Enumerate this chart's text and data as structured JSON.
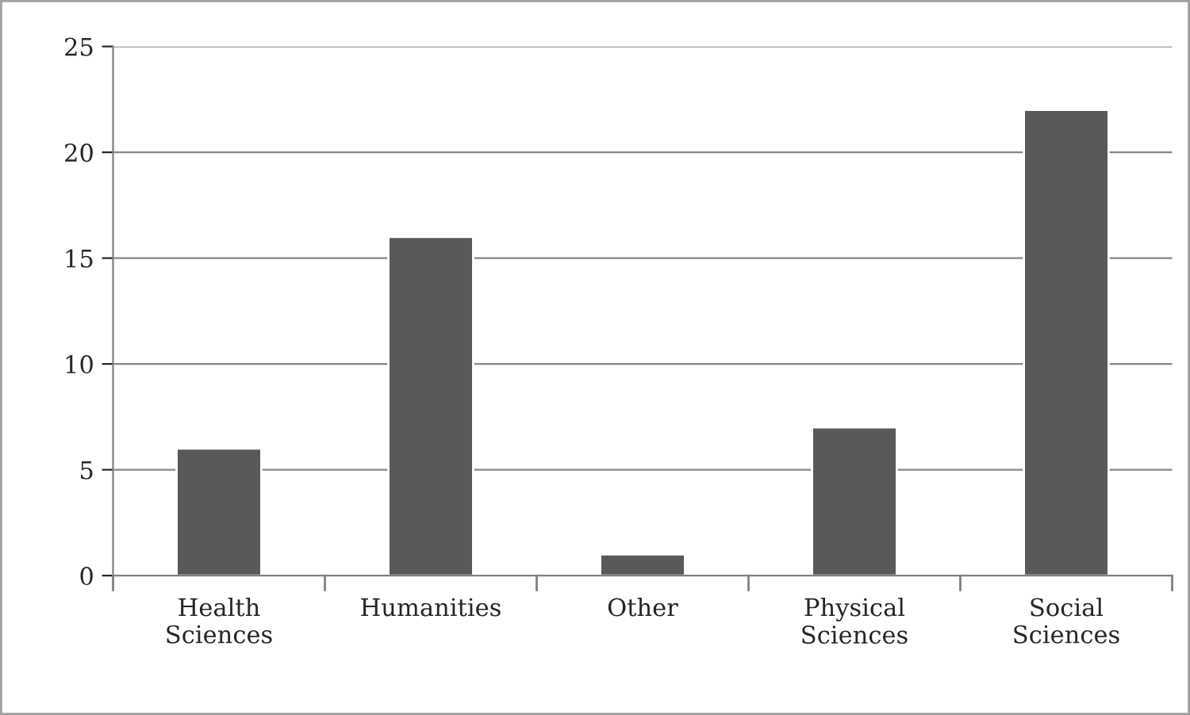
{
  "chart_data": {
    "type": "bar",
    "categories": [
      "Health Sciences",
      "Humanities",
      "Other",
      "Physical Sciences",
      "Social Sciences"
    ],
    "values": [
      6,
      16,
      1,
      7,
      22
    ],
    "color": "#595959",
    "ylim": [
      0,
      25
    ],
    "yticks": [
      0,
      5,
      10,
      15,
      20,
      25
    ],
    "grid": "y",
    "legend": false
  }
}
